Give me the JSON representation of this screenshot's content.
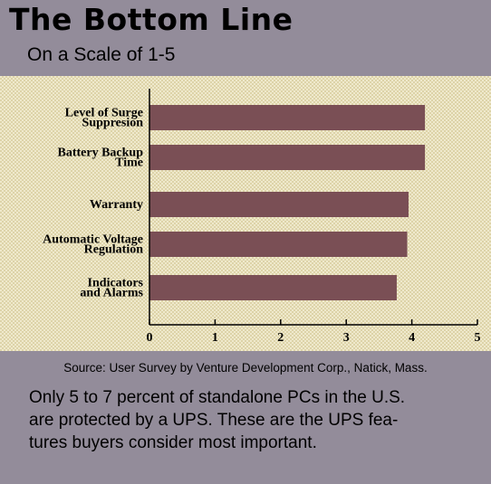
{
  "header": {
    "title": "The Bottom Line",
    "subtitle": "On a Scale of 1-5"
  },
  "chart_data": {
    "type": "bar",
    "orientation": "horizontal",
    "categories": [
      [
        "Level of Surge",
        "Suppresion"
      ],
      [
        "Battery Backup",
        "Time"
      ],
      [
        "Warranty"
      ],
      [
        "Automatic Voltage",
        "Regulation"
      ],
      [
        "Indicators",
        "and Alarms"
      ]
    ],
    "values": [
      4.2,
      4.2,
      3.95,
      3.93,
      3.77
    ],
    "xlim": [
      0,
      5
    ],
    "xticks": [
      "0",
      "1",
      "2",
      "3",
      "4",
      "5"
    ],
    "bar_color": "#7a4f55",
    "grid": false
  },
  "footer": {
    "source": "Source: User Survey by Venture Development Corp., Natick, Mass.",
    "caption_lines": [
      "Only 5 to 7 percent of standalone PCs in the U.S.",
      "are protected by a UPS. These are the UPS fea-",
      "tures buyers consider most important."
    ]
  }
}
